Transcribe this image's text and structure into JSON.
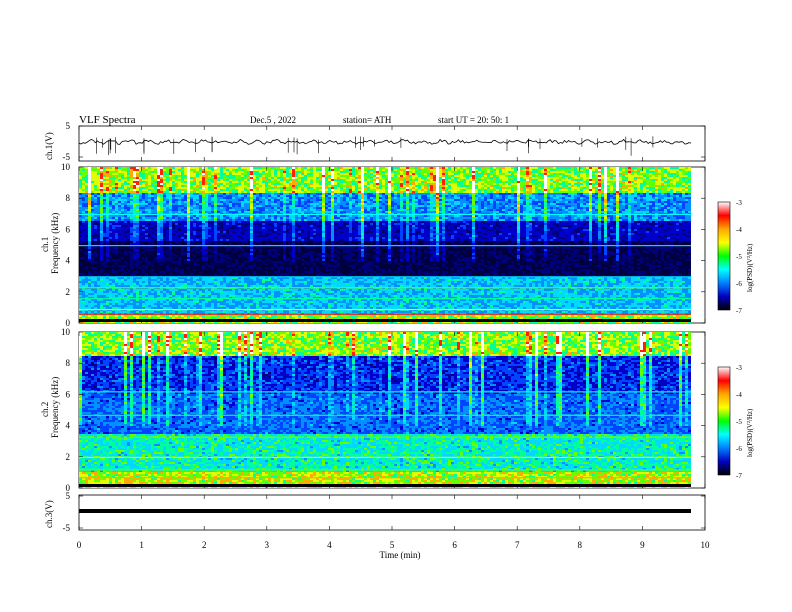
{
  "header": {
    "title": "VLF  Spectra",
    "date": "Dec.5  , 2022",
    "station": "station= ATH",
    "start": "start  UT  =    20: 50: 1"
  },
  "colorbar": {
    "label": "log(PSD)(V²/Hz)",
    "ticks": [
      "-3",
      "-4",
      "-5",
      "-6",
      "-7"
    ],
    "stops": [
      "#ffffff",
      "#ff0000",
      "#ffa500",
      "#ffff00",
      "#00ff00",
      "#00ffff",
      "#0080ff",
      "#0000c0",
      "#000000"
    ]
  },
  "chart_data": [
    {
      "type": "line",
      "panel": "ch1_waveform",
      "ylabel": "ch.1(V)",
      "ylim": [
        -5,
        5
      ],
      "yticks": [
        "5",
        "-5"
      ],
      "xlim": [
        0,
        10
      ],
      "description_level": 0
    },
    {
      "type": "heatmap",
      "panel": "ch1_spectrogram",
      "ylabel": "ch.1\nFrequency  (kHz)",
      "ylabel_line1": "ch.1",
      "ylabel_line2": "Frequency  (kHz)",
      "ylim": [
        0,
        10
      ],
      "yticks": [
        "10",
        "8",
        "6",
        "4",
        "2",
        "0"
      ],
      "xlim": [
        0,
        9.8
      ],
      "colorscale_range": [
        -7,
        -3
      ]
    },
    {
      "type": "heatmap",
      "panel": "ch2_spectrogram",
      "ylabel_line1": "ch.2",
      "ylabel_line2": "Frequency  (kHz)",
      "ylim": [
        0,
        10
      ],
      "yticks": [
        "10",
        "8",
        "6",
        "4",
        "2",
        "0"
      ],
      "xlim": [
        0,
        9.8
      ],
      "colorscale_range": [
        -7,
        -3
      ]
    },
    {
      "type": "line",
      "panel": "ch3_waveform",
      "ylabel": "ch.3(V)",
      "ylim": [
        -5,
        5
      ],
      "yticks": [
        "5",
        "-5"
      ],
      "xlim": [
        0,
        10
      ]
    }
  ],
  "xaxis": {
    "label": "Time  (min)",
    "ticks": [
      "0",
      "1",
      "2",
      "3",
      "4",
      "5",
      "6",
      "7",
      "8",
      "9",
      "10"
    ]
  }
}
